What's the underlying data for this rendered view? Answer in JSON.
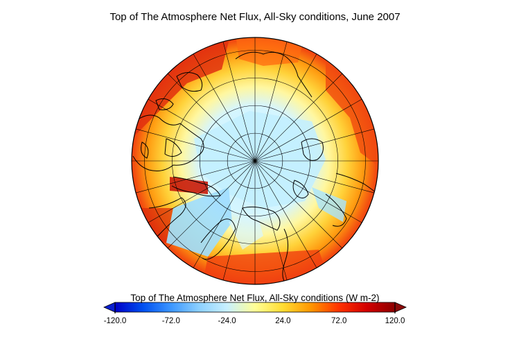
{
  "title": "Top of The Atmosphere Net Flux, All-Sky conditions, June 2007",
  "colorbar": {
    "label": "Top of The Atmosphere Net Flux, All-Sky conditions (W m-2)",
    "ticks": [
      "-120.0",
      "-72.0",
      "-24.0",
      "24.0",
      "72.0",
      "120.0"
    ],
    "min": -120,
    "max": 120,
    "colors": [
      "#0000c8",
      "#0050f0",
      "#3c96ff",
      "#8cd0ff",
      "#c8f0ff",
      "#ffff96",
      "#ffdc32",
      "#ff9600",
      "#ff3200",
      "#d20000",
      "#8c0000"
    ],
    "under_color": "#0a1fd0",
    "over_color": "#8b0a0a"
  },
  "map": {
    "projection": "north polar stereographic",
    "meridian_lines": 24,
    "latitude_circles": 4
  }
}
